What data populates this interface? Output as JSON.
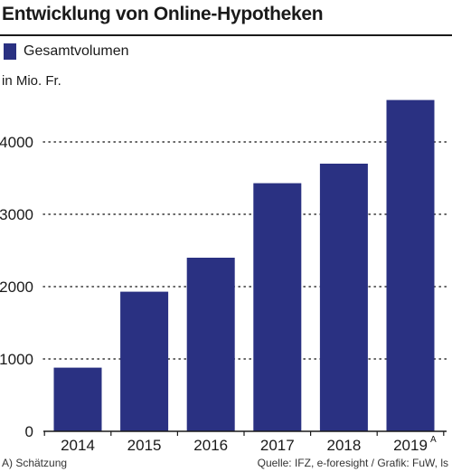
{
  "chart_data": {
    "type": "bar",
    "title": "Entwicklung von Online-Hypotheken",
    "unit": "in Mio. Fr.",
    "categories": [
      "2014",
      "2015",
      "2016",
      "2017",
      "2018",
      "2019"
    ],
    "category_superscripts": [
      "",
      "",
      "",
      "",
      "",
      "A"
    ],
    "series": [
      {
        "name": "Gesamtvolumen",
        "values": [
          880,
          1930,
          2400,
          3430,
          3700,
          4580
        ]
      }
    ],
    "y_ticks": [
      0,
      1000,
      2000,
      3000,
      4000
    ],
    "ylim": [
      0,
      4700
    ],
    "grid": "dotted horizontal",
    "legend_position": "top-left",
    "bar_color": "#2a3182"
  },
  "footer": {
    "note": "A) Schätzung",
    "source": "Quelle: IFZ, e-foresight / Grafik: FuW, ls"
  }
}
